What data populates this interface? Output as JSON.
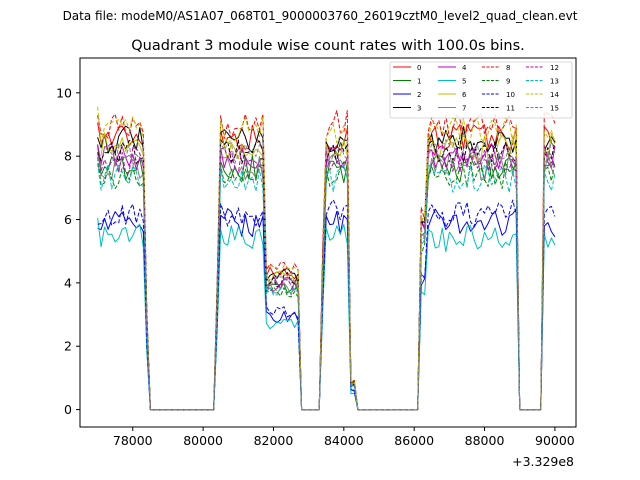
{
  "suptitle": "Data file: modeM0/AS1A07_068T01_9000003760_26019cztM0_level2_quad_clean.evt",
  "chart_data": {
    "type": "line",
    "title": "Quadrant 3 module wise count rates with 100.0s bins.",
    "xlabel": "",
    "ylabel": "",
    "x_offset_label": "+3.329e8",
    "xlim": [
      76500,
      90600
    ],
    "ylim": [
      -0.55,
      11.1
    ],
    "x_ticks": [
      78000,
      80000,
      82000,
      84000,
      86000,
      88000,
      90000
    ],
    "x_tick_labels": [
      "78000",
      "80000",
      "82000",
      "84000",
      "86000",
      "88000",
      "90000"
    ],
    "y_ticks": [
      0,
      2,
      4,
      6,
      8,
      10
    ],
    "y_tick_labels": [
      "0",
      "2",
      "4",
      "6",
      "8",
      "10"
    ],
    "grid": false,
    "legend_position": "top-right",
    "legend_columns": 4,
    "bin_size_s": 100,
    "profile": {
      "note": "Representative count-rate profile (counts/s) per 100 s bin; per-module levels given in series.level",
      "segments": [
        {
          "x_start": 77000,
          "x_end": 78300,
          "value": 1.0
        },
        {
          "x_start": 78300,
          "x_end": 78400,
          "value": 0.35
        },
        {
          "x_start": 78400,
          "x_end": 80300,
          "value": 0.0
        },
        {
          "x_start": 80300,
          "x_end": 80400,
          "value": 0.45
        },
        {
          "x_start": 80400,
          "x_end": 81700,
          "value": 1.0
        },
        {
          "x_start": 81700,
          "x_end": 82700,
          "value": 0.5
        },
        {
          "x_start": 82700,
          "x_end": 83300,
          "value": 0.0
        },
        {
          "x_start": 83300,
          "x_end": 83400,
          "value": 0.55
        },
        {
          "x_start": 83400,
          "x_end": 84100,
          "value": 1.0
        },
        {
          "x_start": 84100,
          "x_end": 84300,
          "value": 0.1
        },
        {
          "x_start": 84300,
          "x_end": 86100,
          "value": 0.0
        },
        {
          "x_start": 86100,
          "x_end": 86300,
          "value": 0.7
        },
        {
          "x_start": 86300,
          "x_end": 88900,
          "value": 1.0
        },
        {
          "x_start": 88900,
          "x_end": 89600,
          "value": 0.0
        },
        {
          "x_start": 89600,
          "x_end": 90000,
          "value": 1.0
        }
      ]
    },
    "series": [
      {
        "name": "0",
        "color": "#ff0000",
        "dash": "solid",
        "level": 8.6
      },
      {
        "name": "1",
        "color": "#008000",
        "dash": "solid",
        "level": 7.6
      },
      {
        "name": "2",
        "color": "#0000ff",
        "dash": "solid",
        "level": 5.9
      },
      {
        "name": "3",
        "color": "#000000",
        "dash": "solid",
        "level": 8.5
      },
      {
        "name": "4",
        "color": "#bf00bf",
        "dash": "solid",
        "level": 8.0
      },
      {
        "name": "5",
        "color": "#00bfbf",
        "dash": "solid",
        "level": 5.4
      },
      {
        "name": "6",
        "color": "#bfbf00",
        "dash": "solid",
        "level": 8.3
      },
      {
        "name": "7",
        "color": "#808080",
        "dash": "solid",
        "level": 7.7
      },
      {
        "name": "8",
        "color": "#ff0000",
        "dash": "dashed",
        "level": 9.0
      },
      {
        "name": "9",
        "color": "#008000",
        "dash": "dashed",
        "level": 7.4
      },
      {
        "name": "10",
        "color": "#0000ff",
        "dash": "dashed",
        "level": 6.2
      },
      {
        "name": "11",
        "color": "#000000",
        "dash": "dashed",
        "level": 8.2
      },
      {
        "name": "12",
        "color": "#bf00bf",
        "dash": "dashed",
        "level": 7.9
      },
      {
        "name": "13",
        "color": "#00bfbf",
        "dash": "dashed",
        "level": 7.3
      },
      {
        "name": "14",
        "color": "#bfbf00",
        "dash": "dashed",
        "level": 8.8
      },
      {
        "name": "15",
        "color": "#808080",
        "dash": "dashed",
        "level": 8.1
      }
    ]
  }
}
